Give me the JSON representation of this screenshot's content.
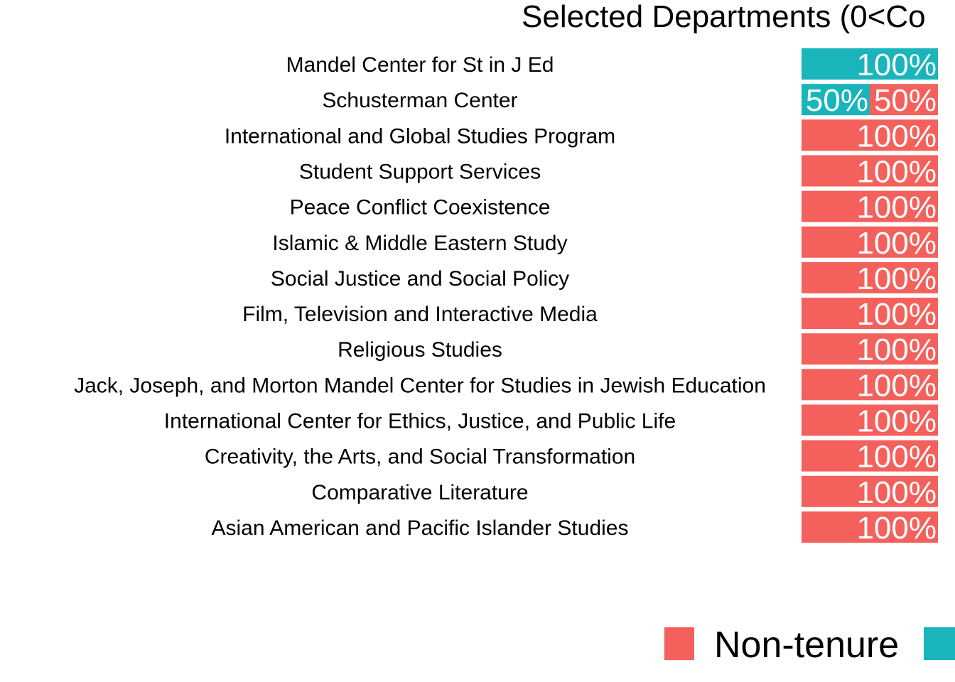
{
  "chart_data": {
    "type": "bar",
    "orientation": "horizontal",
    "stacked": true,
    "title": "Selected Departments (0<Co",
    "categories": [
      "Mandel Center for St in J Ed",
      "Schusterman Center",
      "International and Global Studies Program",
      "Student Support Services",
      "Peace Conflict Coexistence",
      "Islamic & Middle Eastern Study",
      "Social Justice and Social Policy",
      "Film, Television and Interactive Media",
      "Religious Studies",
      "Jack, Joseph, and Morton Mandel Center for Studies in Jewish Education",
      "International Center for Ethics, Justice, and Public Life",
      "Creativity, the Arts, and Social Transformation",
      "Comparative Literature",
      "Asian American and Pacific Islander Studies"
    ],
    "series": [
      {
        "name": "",
        "color": "#19B5BA",
        "values": [
          100,
          50,
          0,
          0,
          0,
          0,
          0,
          0,
          0,
          0,
          0,
          0,
          0,
          0
        ],
        "labels": [
          "100%",
          "50%",
          "",
          "",
          "",
          "",
          "",
          "",
          "",
          "",
          "",
          "",
          "",
          ""
        ]
      },
      {
        "name": "Non-tenure",
        "color": "#F4615C",
        "values": [
          0,
          50,
          100,
          100,
          100,
          100,
          100,
          100,
          100,
          100,
          100,
          100,
          100,
          100
        ],
        "labels": [
          "",
          "50%",
          "100%",
          "100%",
          "100%",
          "100%",
          "100%",
          "100%",
          "100%",
          "100%",
          "100%",
          "100%",
          "100%",
          "100%"
        ]
      }
    ],
    "xlim": [
      0,
      100
    ],
    "grid": false,
    "legend": {
      "position": "bottom",
      "entries": [
        {
          "label": "Non-tenure",
          "color": "#F4615C"
        },
        {
          "label": "",
          "color": "#19B5BA"
        }
      ]
    }
  }
}
